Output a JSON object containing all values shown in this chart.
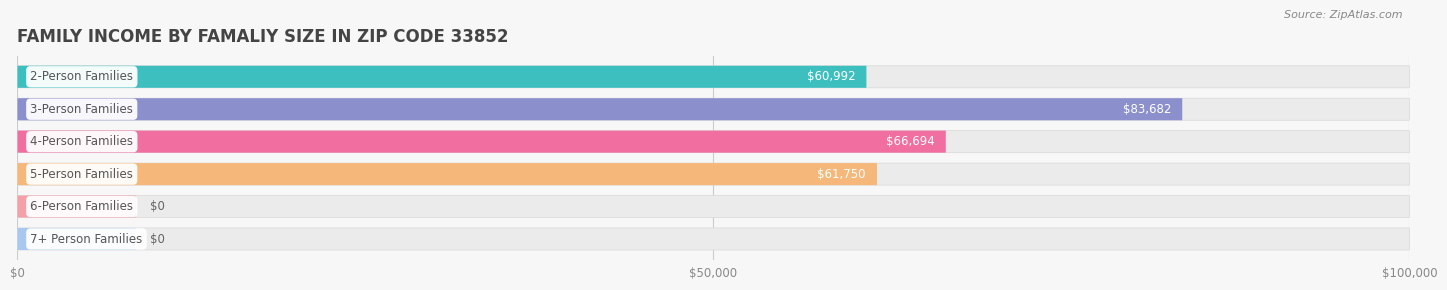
{
  "title": "FAMILY INCOME BY FAMALIY SIZE IN ZIP CODE 33852",
  "source": "Source: ZipAtlas.com",
  "categories": [
    "2-Person Families",
    "3-Person Families",
    "4-Person Families",
    "5-Person Families",
    "6-Person Families",
    "7+ Person Families"
  ],
  "values": [
    60992,
    83682,
    66694,
    61750,
    0,
    0
  ],
  "bar_colors": [
    "#3dbfbf",
    "#8b8fcc",
    "#f06fa0",
    "#f5b87a",
    "#f4a0a8",
    "#a8c8f0"
  ],
  "value_labels": [
    "$60,992",
    "$83,682",
    "$66,694",
    "$61,750",
    "$0",
    "$0"
  ],
  "xlim": [
    0,
    100000
  ],
  "xticks": [
    0,
    50000,
    100000
  ],
  "xtick_labels": [
    "$0",
    "$50,000",
    "$100,000"
  ],
  "bg_color": "#f7f7f7",
  "bar_bg_color": "#ebebeb",
  "title_fontsize": 12,
  "label_fontsize": 8.5,
  "value_fontsize": 8.5,
  "source_fontsize": 8,
  "zero_stub_value": 8500
}
